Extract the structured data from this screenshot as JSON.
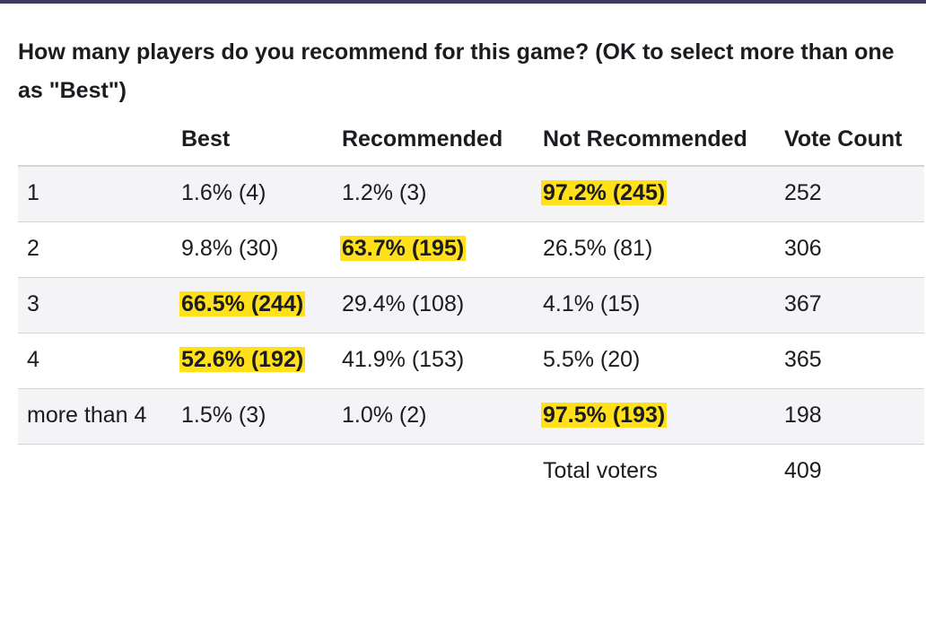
{
  "poll": {
    "question": "How many players do you recommend for this game? (OK to select more than one as \"Best\")",
    "headers": {
      "players": "",
      "best": "Best",
      "recommended": "Recommended",
      "not_recommended": "Not Recommended",
      "vote_count": "Vote Count"
    },
    "rows": [
      {
        "players": "1",
        "best": "1.6% (4)",
        "recommended": "1.2% (3)",
        "not_recommended": "97.2% (245)",
        "vote_count": "252",
        "highlight": "not_recommended"
      },
      {
        "players": "2",
        "best": "9.8% (30)",
        "recommended": "63.7% (195)",
        "not_recommended": "26.5% (81)",
        "vote_count": "306",
        "highlight": "recommended"
      },
      {
        "players": "3",
        "best": "66.5% (244)",
        "recommended": "29.4% (108)",
        "not_recommended": "4.1% (15)",
        "vote_count": "367",
        "highlight": "best"
      },
      {
        "players": "4",
        "best": "52.6% (192)",
        "recommended": "41.9% (153)",
        "not_recommended": "5.5% (20)",
        "vote_count": "365",
        "highlight": "best"
      },
      {
        "players": "more than 4",
        "best": "1.5% (3)",
        "recommended": "1.0% (2)",
        "not_recommended": "97.5% (193)",
        "vote_count": "198",
        "highlight": "not_recommended"
      }
    ],
    "total_label": "Total voters",
    "total_value": "409"
  },
  "colors": {
    "highlight": "#ffe019",
    "row_shade": "#f4f4f6",
    "border": "#d4d4d8",
    "top_bar": "#3f3a60",
    "text": "#1b1b20"
  }
}
